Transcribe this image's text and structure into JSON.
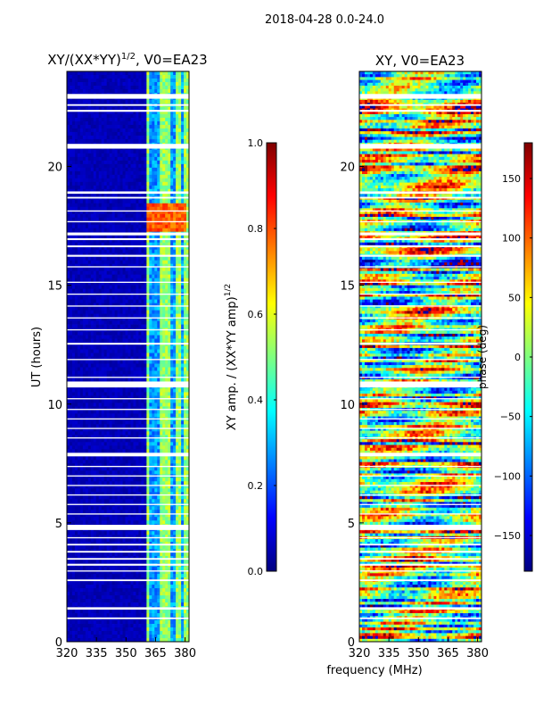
{
  "suptitle": "2018-04-28 0.0-24.0",
  "colors": {
    "jet": [
      "#00007f",
      "#0000ff",
      "#007fff",
      "#00ffff",
      "#7fff7f",
      "#ffff00",
      "#ff7f00",
      "#ff0000",
      "#7f0000"
    ],
    "gap": "#ffffff",
    "axis": "#000000"
  },
  "chart_data": [
    {
      "type": "heatmap",
      "title": "XY/(XX*YY)",
      "title_superscript": "1/2",
      "title_suffix": ", V0=EA23",
      "xlabel": "",
      "ylabel": "UT (hours)",
      "xlim": [
        320,
        382
      ],
      "ylim": [
        0,
        24
      ],
      "xticks": [
        320,
        335,
        350,
        365,
        380
      ],
      "yticks": [
        0,
        5,
        10,
        15,
        20
      ],
      "xtick_labels": [
        "320",
        "335",
        "350",
        "365",
        "380"
      ],
      "ytick_labels": [
        "0",
        "5",
        "10",
        "15",
        "20"
      ],
      "signal_band_mhz": [
        360,
        382
      ],
      "bright_patch": {
        "freq_mhz": [
          360,
          380
        ],
        "ut_hours": [
          17.3,
          18.4
        ],
        "value": 0.85
      },
      "colorbar": {
        "label": "XY amp. / (XX*YY amp)",
        "label_superscript": "1/2",
        "vmin": 0.0,
        "vmax": 1.0,
        "ticks": [
          0.0,
          0.2,
          0.4,
          0.6,
          0.8,
          1.0
        ],
        "tick_labels": [
          "0.0",
          "0.2",
          "0.4",
          "0.6",
          "0.8",
          "1.0"
        ]
      }
    },
    {
      "type": "heatmap",
      "title": "XY, V0=EA23",
      "xlabel": "frequency (MHz)",
      "ylabel": "",
      "xlim": [
        320,
        382
      ],
      "ylim": [
        0,
        24
      ],
      "xticks": [
        320,
        335,
        350,
        365,
        380
      ],
      "yticks": [
        0,
        5,
        10,
        15,
        20
      ],
      "xtick_labels": [
        "320",
        "335",
        "350",
        "365",
        "380"
      ],
      "ytick_labels": [
        "0",
        "5",
        "10",
        "15",
        "20"
      ],
      "colorbar": {
        "label": "phase (deg)",
        "vmin": -180,
        "vmax": 180,
        "ticks": [
          -150,
          -100,
          -50,
          0,
          50,
          100,
          150
        ],
        "tick_labels": [
          "−150",
          "−100",
          "−50",
          "0",
          "50",
          "100",
          "150"
        ]
      }
    }
  ],
  "gaps_ut_hours": [
    [
      22.85,
      23.05
    ],
    [
      22.55,
      22.62
    ],
    [
      22.3,
      22.38
    ],
    [
      20.75,
      20.95
    ],
    [
      18.85,
      18.95
    ],
    [
      18.65,
      18.72
    ],
    [
      18.1,
      18.15
    ],
    [
      17.65,
      17.7
    ],
    [
      17.1,
      17.22
    ],
    [
      16.9,
      16.98
    ],
    [
      16.6,
      16.68
    ],
    [
      16.2,
      16.28
    ],
    [
      15.75,
      15.8
    ],
    [
      15.1,
      15.15
    ],
    [
      14.6,
      14.65
    ],
    [
      14.1,
      14.15
    ],
    [
      13.6,
      13.65
    ],
    [
      13.1,
      13.15
    ],
    [
      12.5,
      12.58
    ],
    [
      11.85,
      11.9
    ],
    [
      11.1,
      11.15
    ],
    [
      10.7,
      10.95
    ],
    [
      10.2,
      10.25
    ],
    [
      9.75,
      9.8
    ],
    [
      9.35,
      9.4
    ],
    [
      8.95,
      9.0
    ],
    [
      8.55,
      8.6
    ],
    [
      7.8,
      7.95
    ],
    [
      7.35,
      7.4
    ],
    [
      6.95,
      7.0
    ],
    [
      6.55,
      6.6
    ],
    [
      6.15,
      6.2
    ],
    [
      5.75,
      5.8
    ],
    [
      5.35,
      5.4
    ],
    [
      4.7,
      4.92
    ],
    [
      4.35,
      4.4
    ],
    [
      4.05,
      4.12
    ],
    [
      3.75,
      3.82
    ],
    [
      3.45,
      3.52
    ],
    [
      3.2,
      3.28
    ],
    [
      2.95,
      3.0
    ],
    [
      2.55,
      2.62
    ],
    [
      1.35,
      1.45
    ],
    [
      0.95,
      1.02
    ]
  ]
}
